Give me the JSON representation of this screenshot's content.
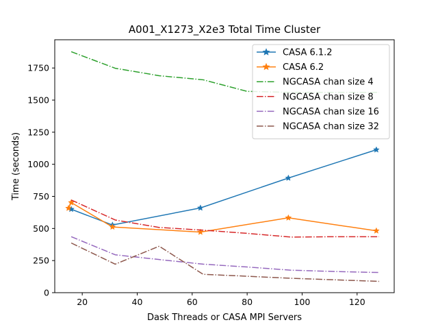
{
  "chart_data": {
    "type": "line",
    "title": "A001_X1273_X2e3 Total Time Cluster",
    "xlabel": "Dask Threads or CASA MPI Servers",
    "ylabel": "Time (seconds)",
    "xlim": [
      10,
      133.5
    ],
    "ylim": [
      0,
      1970
    ],
    "xticks": [
      20,
      40,
      60,
      80,
      100,
      120
    ],
    "yticks": [
      0,
      250,
      500,
      750,
      1000,
      1250,
      1500,
      1750
    ],
    "grid": false,
    "legend_position": "top-right",
    "series": [
      {
        "name": "CASA 6.1.2",
        "color": "#1f77b4",
        "dash": "solid",
        "marker": "star",
        "x": [
          16,
          31,
          63,
          95,
          127
        ],
        "y": [
          650,
          527,
          660,
          893,
          1113
        ]
      },
      {
        "name": "CASA 6.2",
        "color": "#ff7f0e",
        "dash": "solid",
        "marker": "star",
        "x": [
          15,
          16,
          31,
          63,
          95,
          127
        ],
        "y": [
          658,
          702,
          512,
          472,
          583,
          482
        ]
      },
      {
        "name": "NGCASA chan size 4",
        "color": "#2ca02c",
        "dash": "dashdot",
        "marker": "none",
        "x": [
          16,
          32,
          48,
          64,
          80,
          96,
          112,
          128
        ],
        "y": [
          1877,
          1748,
          1690,
          1658,
          1568,
          1560,
          1560,
          1560
        ]
      },
      {
        "name": "NGCASA chan size 8",
        "color": "#d62728",
        "dash": "dashdot",
        "marker": "none",
        "x": [
          16,
          32,
          48,
          64,
          80,
          96,
          112,
          128
        ],
        "y": [
          722,
          566,
          508,
          487,
          462,
          433,
          436,
          436
        ]
      },
      {
        "name": "NGCASA chan size 16",
        "color": "#9467bd",
        "dash": "dashdot",
        "marker": "none",
        "x": [
          16,
          32,
          48,
          64,
          80,
          96,
          112,
          128
        ],
        "y": [
          436,
          295,
          258,
          222,
          200,
          175,
          165,
          157
        ]
      },
      {
        "name": "NGCASA chan size 32",
        "color": "#8c564b",
        "dash": "dashdot",
        "marker": "none",
        "x": [
          16,
          32,
          48,
          64,
          80,
          96,
          112,
          128
        ],
        "y": [
          387,
          222,
          362,
          143,
          128,
          112,
          100,
          88
        ]
      }
    ]
  }
}
